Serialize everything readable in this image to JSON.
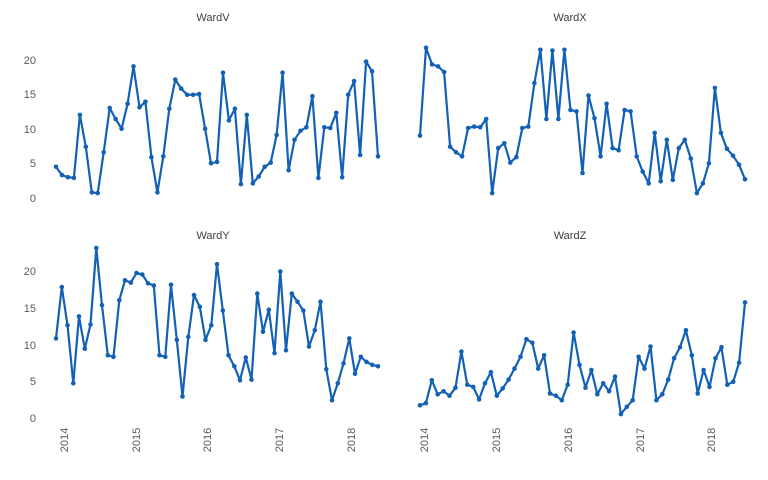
{
  "figure": {
    "background_color": "#ffffff",
    "title_color": "#3d3d3d",
    "tick_label_color": "#595959",
    "line_color": "#1261b5"
  },
  "chart_data": [
    {
      "type": "line",
      "title": "WardV",
      "series": [
        {
          "name": "WardV",
          "color": "#1261b5",
          "marker": "circle",
          "values": [
            4.8,
            3.6,
            3.3,
            3.2,
            12.3,
            7.7,
            1.1,
            1.0,
            6.9,
            13.3,
            11.7,
            10.3,
            13.9,
            19.3,
            13.4,
            14.2,
            6.2,
            1.1,
            6.3,
            13.2,
            17.4,
            16.1,
            15.2,
            15.2,
            15.3,
            10.3,
            5.3,
            5.5,
            18.4,
            11.5,
            13.2,
            2.3,
            12.3,
            2.4,
            3.4,
            4.8,
            5.4,
            9.4,
            18.4,
            4.3,
            8.7,
            10.0,
            10.5,
            15.0,
            3.2,
            10.5,
            10.4,
            12.6,
            3.3,
            15.2,
            17.2,
            6.5,
            20.0,
            18.6,
            6.3
          ]
        }
      ],
      "x_tick_labels": [
        "2014",
        "2015",
        "2016",
        "2017",
        "2018"
      ],
      "y_tick_labels": [
        "0",
        "5",
        "10",
        "15",
        "20"
      ],
      "ylim": [
        0,
        23
      ],
      "grid": false,
      "legend": false,
      "x_axis": "monthly, 2014 through mid 2018"
    },
    {
      "type": "line",
      "title": "WardX",
      "series": [
        {
          "name": "WardX",
          "color": "#1261b5",
          "marker": "circle",
          "values": [
            9.3,
            22.0,
            19.6,
            19.3,
            18.5,
            7.7,
            6.9,
            6.3,
            10.4,
            10.6,
            10.5,
            11.7,
            1.0,
            7.5,
            8.2,
            5.4,
            6.2,
            10.4,
            10.6,
            16.9,
            21.7,
            11.7,
            21.6,
            11.7,
            21.7,
            13.0,
            12.8,
            3.9,
            15.1,
            11.8,
            6.3,
            13.9,
            7.5,
            7.2,
            13.0,
            12.8,
            6.3,
            4.1,
            2.4,
            9.7,
            2.7,
            8.7,
            2.9,
            7.5,
            8.7,
            6.0,
            1.0,
            2.4,
            5.3,
            16.2,
            9.7,
            7.4,
            6.4,
            5.1,
            3.0
          ]
        }
      ],
      "x_tick_labels": [
        "2014",
        "2015",
        "2016",
        "2017",
        "2018"
      ],
      "y_tick_labels": [
        "0",
        "5",
        "10",
        "15",
        "20"
      ],
      "ylim": [
        0,
        23
      ],
      "grid": false,
      "legend": false,
      "x_axis": "monthly, 2014 through mid 2018"
    },
    {
      "type": "line",
      "title": "WardY",
      "series": [
        {
          "name": "WardY",
          "color": "#1261b5",
          "marker": "circle",
          "values": [
            11.1,
            18.1,
            12.9,
            5.0,
            14.1,
            9.7,
            13.0,
            23.4,
            15.6,
            8.8,
            8.6,
            16.3,
            19.0,
            18.7,
            20.0,
            19.8,
            18.6,
            18.3,
            8.8,
            8.6,
            18.4,
            10.9,
            3.2,
            11.3,
            17.0,
            15.4,
            10.9,
            12.9,
            21.2,
            14.9,
            8.8,
            7.3,
            5.4,
            8.5,
            5.5,
            17.2,
            12.0,
            15.0,
            9.1,
            20.2,
            9.5,
            17.2,
            16.1,
            14.9,
            10.0,
            12.2,
            16.1,
            6.9,
            2.7,
            5.0,
            7.7,
            11.1,
            6.3,
            8.6,
            7.9,
            7.5,
            7.3
          ]
        }
      ],
      "x_tick_labels": [
        "2014",
        "2015",
        "2016",
        "2017",
        "2018"
      ],
      "y_tick_labels": [
        "0",
        "5",
        "10",
        "15",
        "20"
      ],
      "ylim": [
        0,
        24
      ],
      "grid": false,
      "legend": false,
      "x_axis": "monthly, 2014 through mid 2018"
    },
    {
      "type": "line",
      "title": "WardZ",
      "series": [
        {
          "name": "WardZ",
          "color": "#1261b5",
          "marker": "circle",
          "values": [
            2.0,
            2.3,
            5.4,
            3.5,
            3.9,
            3.3,
            4.4,
            9.3,
            4.8,
            4.5,
            2.8,
            5.0,
            6.5,
            3.3,
            4.3,
            5.5,
            7.0,
            8.6,
            11.0,
            10.5,
            7.0,
            8.8,
            3.6,
            3.3,
            2.7,
            4.8,
            11.9,
            7.5,
            4.4,
            6.8,
            3.5,
            5.0,
            3.9,
            5.9,
            0.8,
            1.8,
            2.7,
            8.6,
            7.0,
            10.0,
            2.7,
            3.5,
            5.5,
            8.4,
            9.9,
            12.2,
            8.8,
            3.6,
            6.8,
            4.5,
            8.4,
            9.9,
            4.8,
            5.2,
            7.8,
            16.0
          ]
        }
      ],
      "x_tick_labels": [
        "2014",
        "2015",
        "2016",
        "2017",
        "2018"
      ],
      "y_tick_labels": [
        "0",
        "5",
        "10",
        "15",
        "20"
      ],
      "ylim": [
        0,
        24
      ],
      "grid": false,
      "legend": false,
      "x_axis": "monthly, 2014 through mid 2018"
    }
  ]
}
